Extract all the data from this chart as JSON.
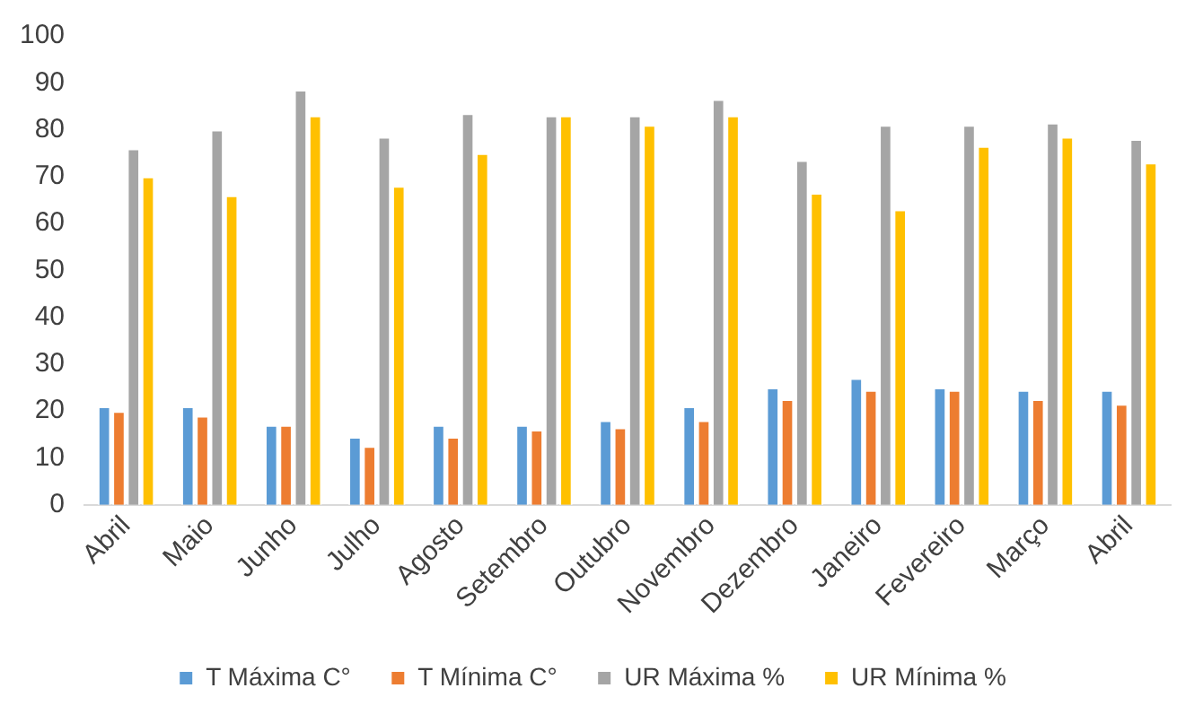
{
  "chart_data": {
    "type": "bar",
    "categories": [
      "Abril",
      "Maio",
      "Junho",
      "Julho",
      "Agosto",
      "Setembro",
      "Outubro",
      "Novembro",
      "Dezembro",
      "Janeiro",
      "Fevereiro",
      "Março",
      "Abril"
    ],
    "series": [
      {
        "name": "T Máxima C°",
        "color": "#5b9bd5",
        "values": [
          21,
          21,
          17,
          14.5,
          17,
          17,
          18,
          21,
          25,
          27,
          25,
          24.5,
          24.5
        ]
      },
      {
        "name": "T Mínima C°",
        "color": "#ed7d31",
        "values": [
          20,
          19,
          17,
          12.5,
          14.5,
          16,
          16.5,
          18,
          22.5,
          24.5,
          24.5,
          22.5,
          21.5
        ]
      },
      {
        "name": "UR Máxima %",
        "color": "#a5a5a5",
        "values": [
          76,
          80,
          88.5,
          78.5,
          83.5,
          83,
          83,
          86.5,
          73.5,
          81,
          81,
          81.5,
          78
        ]
      },
      {
        "name": "UR Mínima %",
        "color": "#ffc000",
        "values": [
          70,
          66,
          83,
          68,
          75,
          83,
          81,
          83,
          66.5,
          63,
          76.5,
          78.5,
          73
        ]
      }
    ],
    "ylim": [
      0,
      100
    ],
    "yticks": [
      0,
      10,
      20,
      30,
      40,
      50,
      60,
      70,
      80,
      90,
      100
    ],
    "grid": false,
    "legend": "bottom"
  }
}
